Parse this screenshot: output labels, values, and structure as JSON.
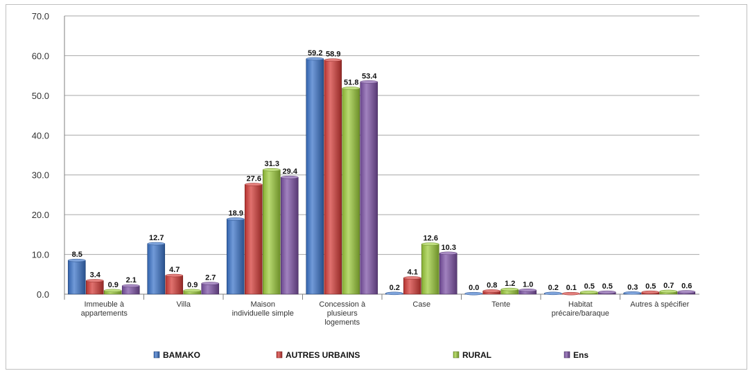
{
  "chart_data": {
    "type": "bar",
    "categories": [
      "Immeuble à appartements",
      "Villa",
      "Maison individuelle simple",
      "Concession à plusieurs logements",
      "Case",
      "Tente",
      "Habitat précaire/baraque",
      "Autres à spécifier"
    ],
    "category_lines": [
      [
        "Immeuble à",
        "appartements"
      ],
      [
        "Villa"
      ],
      [
        "Maison",
        "individuelle simple"
      ],
      [
        "Concession à",
        "plusieurs",
        "logements"
      ],
      [
        "Case"
      ],
      [
        "Tente"
      ],
      [
        "Habitat",
        "précaire/baraque"
      ],
      [
        "Autres à spécifier"
      ]
    ],
    "series": [
      {
        "name": "BAMAKO",
        "color": "#3a73c9",
        "values": [
          8.5,
          12.7,
          18.9,
          59.2,
          0.2,
          0.0,
          0.2,
          0.3
        ]
      },
      {
        "name": "AUTRES URBAINS",
        "color": "#d43a36",
        "values": [
          3.4,
          4.7,
          27.6,
          58.9,
          4.1,
          0.8,
          0.1,
          0.5
        ]
      },
      {
        "name": "RURAL",
        "color": "#9ccc3a",
        "values": [
          0.9,
          0.9,
          31.3,
          51.8,
          12.6,
          1.2,
          0.5,
          0.7
        ]
      },
      {
        "name": "Ens",
        "color": "#7d52a6",
        "values": [
          2.1,
          2.7,
          29.4,
          53.4,
          10.3,
          1.0,
          0.5,
          0.6
        ]
      }
    ],
    "ylim": [
      0,
      70
    ],
    "yticks": [
      "0.0",
      "10.0",
      "20.0",
      "30.0",
      "40.0",
      "50.0",
      "60.0",
      "70.0"
    ],
    "title": "",
    "xlabel": "",
    "ylabel": "",
    "grid": true,
    "legend": "bottom"
  }
}
